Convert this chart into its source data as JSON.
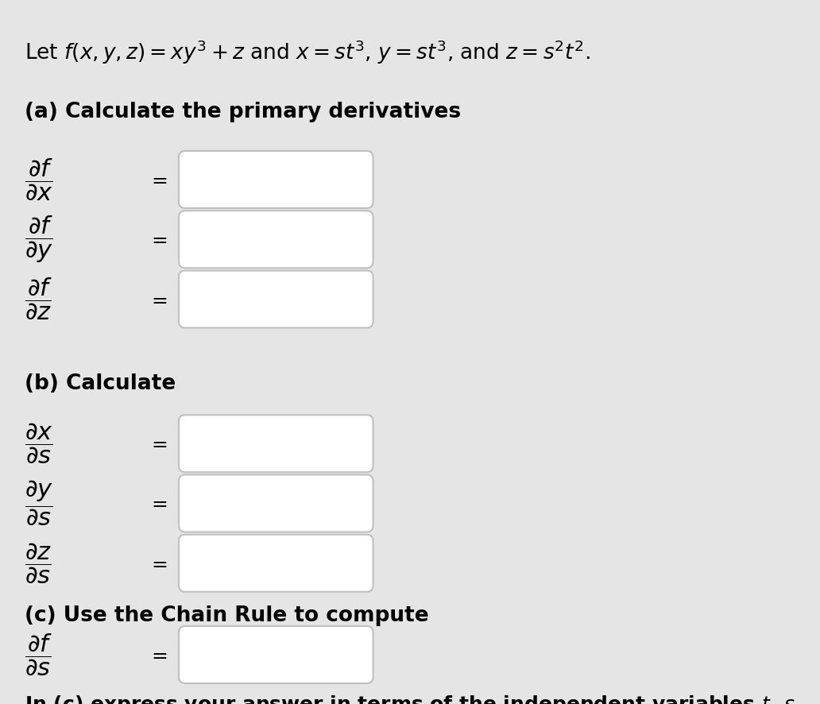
{
  "background_color": "#e5e5e5",
  "box_fill_color": "#ffffff",
  "box_edge_color": "#c0c0c0",
  "title_line": "Let $f(x, y, z) = xy^3 + z$ and $x = st^3$, $y = st^3$, and $z = s^2t^2$.",
  "section_a_label": "(a) Calculate the primary derivatives",
  "section_b_label": "(b) Calculate",
  "section_c_label": "(c) Use the Chain Rule to compute",
  "section_c_footer": "In (c) express your answer in terms of the independent variables $t$, $s$",
  "part_a_labels": [
    "$\\dfrac{\\partial f}{\\partial x}$",
    "$\\dfrac{\\partial f}{\\partial y}$",
    "$\\dfrac{\\partial f}{\\partial z}$"
  ],
  "part_b_labels": [
    "$\\dfrac{\\partial x}{\\partial s}$",
    "$\\dfrac{\\partial y}{\\partial s}$",
    "$\\dfrac{\\partial z}{\\partial s}$"
  ],
  "part_c_labels": [
    "$\\dfrac{\\partial f}{\\partial s}$"
  ],
  "title_fontsize": 19,
  "section_fontsize": 19,
  "label_fontsize": 22,
  "eq_fontsize": 18,
  "footer_fontsize": 18,
  "fig_width": 10.32,
  "fig_height": 8.86,
  "dpi": 100
}
